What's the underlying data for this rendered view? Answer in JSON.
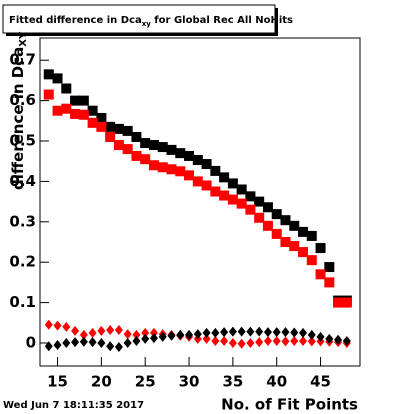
{
  "chart_data": {
    "type": "scatter",
    "title": "Fitted difference in Dca",
    "title_subscript": "xy",
    "title_suffix": " for Global Rec All NoHits",
    "y_label": "difference in Dca",
    "y_label_subscript": "XY",
    "x_label": "No. of Fit Points",
    "timestamp": "Wed Jun  7 18:11:35 2017",
    "x": [
      14,
      15,
      16,
      17,
      18,
      19,
      20,
      21,
      22,
      23,
      24,
      25,
      26,
      27,
      28,
      29,
      30,
      31,
      32,
      33,
      34,
      35,
      36,
      37,
      38,
      39,
      40,
      41,
      42,
      43,
      44,
      45,
      46,
      47,
      48
    ],
    "series": [
      {
        "color": "#000000",
        "marker": "square",
        "values": [
          0.665,
          0.655,
          0.63,
          0.6,
          0.6,
          0.575,
          0.557,
          0.535,
          0.53,
          0.525,
          0.51,
          0.495,
          0.49,
          0.485,
          0.478,
          0.47,
          0.463,
          0.453,
          0.443,
          0.426,
          0.41,
          0.395,
          0.38,
          0.363,
          0.35,
          0.336,
          0.319,
          0.304,
          0.29,
          0.275,
          0.265,
          0.235,
          0.188,
          0.105,
          0.105
        ]
      },
      {
        "color": "#ff0000",
        "marker": "square",
        "values": [
          0.615,
          0.575,
          0.58,
          0.567,
          0.565,
          0.545,
          0.535,
          0.51,
          0.49,
          0.48,
          0.463,
          0.455,
          0.44,
          0.435,
          0.43,
          0.425,
          0.415,
          0.4,
          0.39,
          0.375,
          0.365,
          0.355,
          0.345,
          0.33,
          0.31,
          0.29,
          0.27,
          0.25,
          0.24,
          0.225,
          0.205,
          0.17,
          0.15,
          0.1,
          0.1
        ]
      },
      {
        "color": "#ff0000",
        "marker": "diamond",
        "values": [
          0.045,
          0.043,
          0.04,
          0.03,
          0.02,
          0.025,
          0.03,
          0.032,
          0.032,
          0.022,
          0.02,
          0.025,
          0.025,
          0.022,
          0.02,
          0.018,
          0.015,
          0.01,
          0.01,
          0.005,
          0.005,
          0.0,
          -0.002,
          0.0,
          0.002,
          0.005,
          0.005,
          0.004,
          0.005,
          0.005,
          0.004,
          0.004,
          0.003,
          0.002,
          0.0
        ]
      },
      {
        "color": "#000000",
        "marker": "diamond",
        "values": [
          -0.008,
          -0.005,
          0.0,
          0.002,
          0.003,
          0.002,
          0.0,
          -0.008,
          -0.01,
          0.0,
          0.005,
          0.01,
          0.012,
          0.015,
          0.018,
          0.02,
          0.02,
          0.022,
          0.025,
          0.025,
          0.027,
          0.028,
          0.028,
          0.028,
          0.028,
          0.027,
          0.027,
          0.027,
          0.026,
          0.025,
          0.02,
          0.015,
          0.01,
          0.008,
          0.005
        ]
      }
    ],
    "xlim": [
      13,
      49.5
    ],
    "xticks": [
      15,
      20,
      25,
      30,
      35,
      40,
      45
    ],
    "ylim": [
      -0.057,
      0.755
    ],
    "yticks": [
      0,
      0.1,
      0.2,
      0.3,
      0.4,
      0.5,
      0.6,
      0.7
    ]
  }
}
